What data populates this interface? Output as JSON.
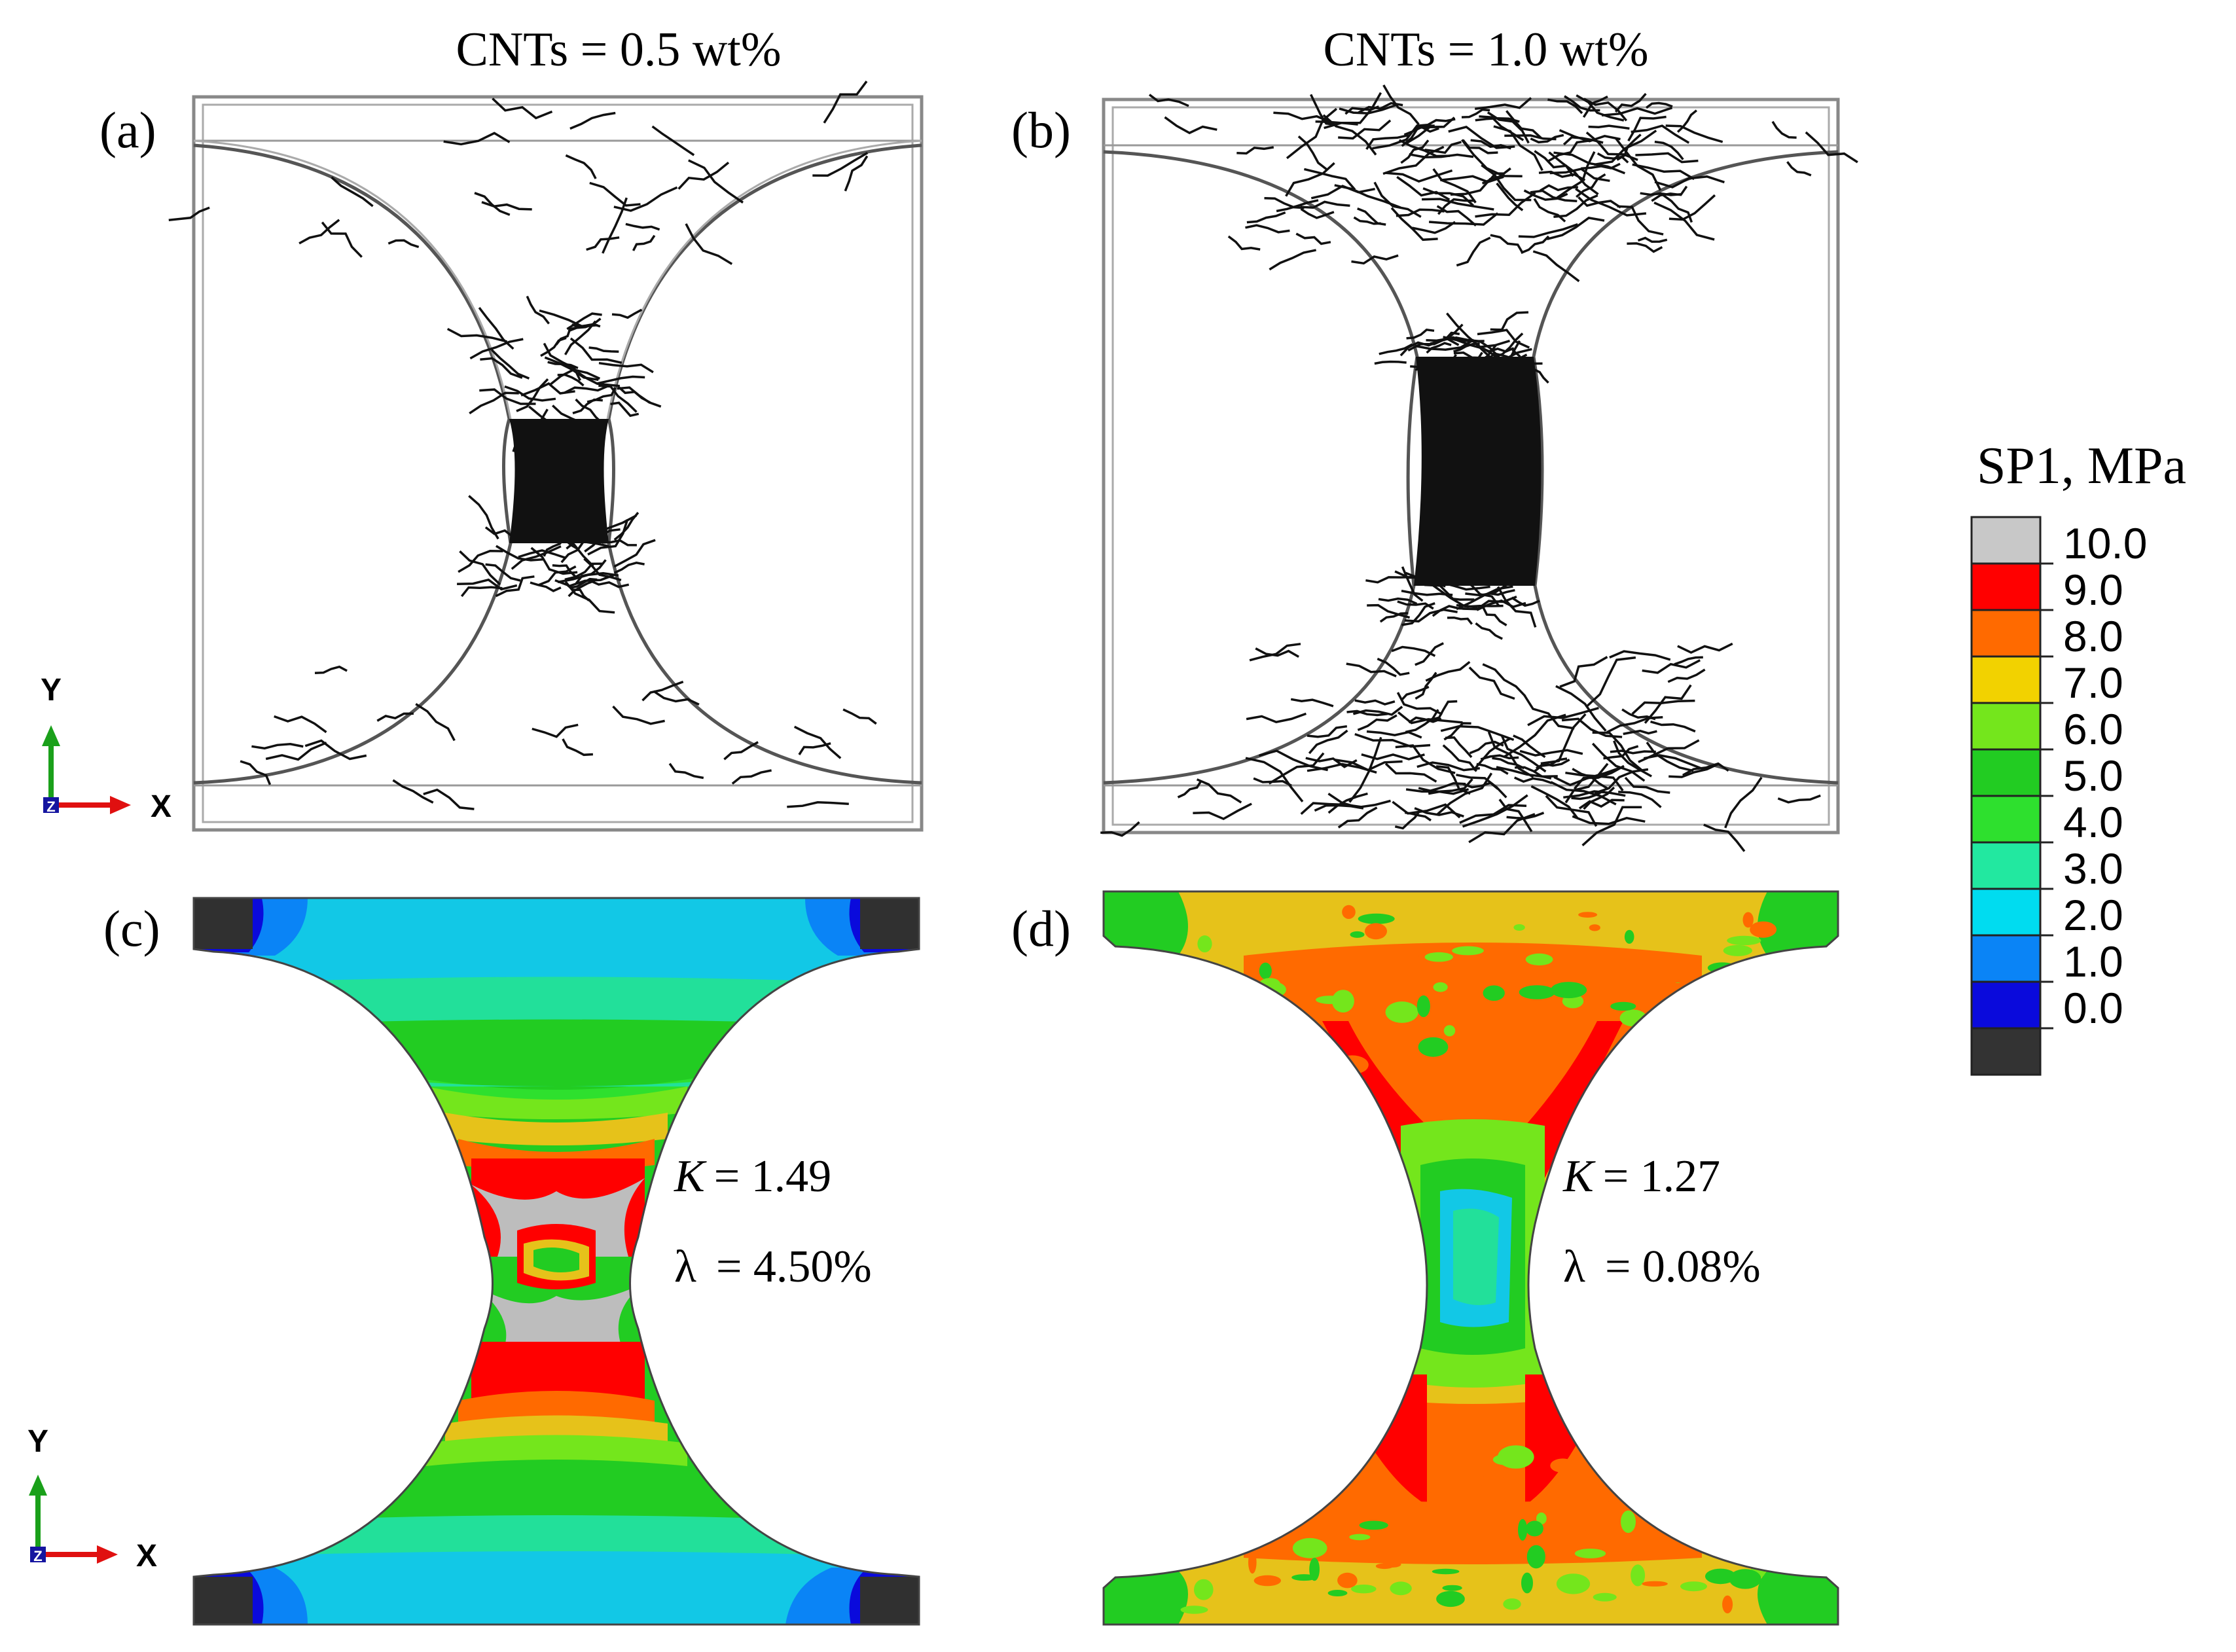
{
  "figure": {
    "col_titles": [
      "CNTs = 0.5 wt%",
      "CNTs = 1.0 wt%"
    ],
    "panel_labels": [
      "(a)",
      "(b)",
      "(c)",
      "(d)"
    ],
    "annotations": {
      "c": {
        "k_sym": "K",
        "k_val": "= 1.49",
        "lam_sym": "λ",
        "lam_val": "= 4.50%"
      },
      "d": {
        "k_sym": "K",
        "k_val": "= 1.27",
        "lam_sym": "λ",
        "lam_val": "= 0.08%"
      }
    },
    "triad": {
      "y": "Y",
      "x": "X",
      "z": "Z"
    },
    "legend": {
      "title": "SP1, MPa",
      "ticks": [
        "10.0",
        "9.0",
        "8.0",
        "7.0",
        "6.0",
        "5.0",
        "4.0",
        "3.0",
        "2.0",
        "1.0",
        "0.0"
      ],
      "colors": [
        "#c8c8c8",
        "#ff0000",
        "#ff6a00",
        "#f2d200",
        "#74e61c",
        "#22cc22",
        "#2ee02e",
        "#22e8a0",
        "#00dcf0",
        "#0a84f6",
        "#0a0adc",
        "#333333"
      ]
    },
    "contour_colors": {
      "black": "#303030",
      "dblue": "#0a0adc",
      "blue": "#0a84f6",
      "cyan": "#12c8e6",
      "teal": "#22e09a",
      "green": "#22cc22",
      "lime": "#74e61c",
      "yellow": "#e6c21a",
      "orange": "#ff6a00",
      "red": "#ff0000",
      "gray": "#bdbdbd"
    }
  }
}
